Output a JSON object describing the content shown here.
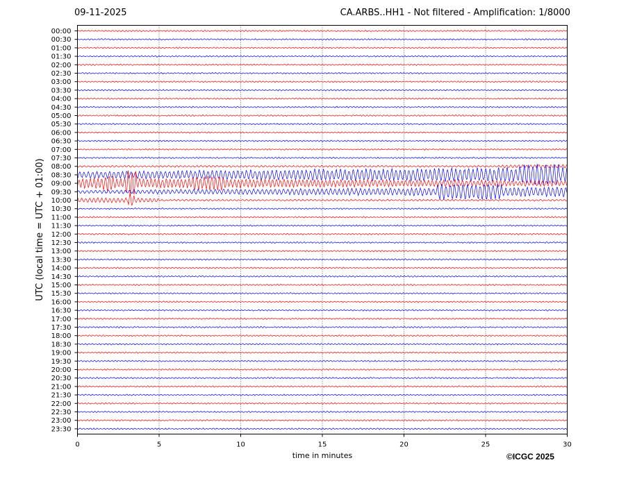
{
  "header": {
    "date": "09-11-2025",
    "title": "CA.ARBS..HH1 - Not filtered - Amplification: 1/8000"
  },
  "footer": {
    "copyright": "©ICGC 2025"
  },
  "chart_data": {
    "type": "line",
    "subtype": "helicorder",
    "xlabel": "time in minutes",
    "ylabel": "UTC (local time = UTC + 01:00)",
    "xlim": [
      0,
      30
    ],
    "xticks": [
      0,
      5,
      10,
      15,
      20,
      25,
      30
    ],
    "x_grid": "dotted vertical lines at each 5 minutes",
    "trace_colors": [
      "#ff0000",
      "#0000ff"
    ],
    "rows": [
      "00:00",
      "00:30",
      "01:00",
      "01:30",
      "02:00",
      "02:30",
      "03:00",
      "03:30",
      "04:00",
      "04:30",
      "05:00",
      "05:30",
      "06:00",
      "06:30",
      "07:00",
      "07:30",
      "08:00",
      "08:30",
      "09:00",
      "09:30",
      "10:00",
      "10:30",
      "11:00",
      "11:30",
      "12:00",
      "12:30",
      "13:00",
      "13:30",
      "14:00",
      "14:30",
      "15:00",
      "15:30",
      "16:00",
      "16:30",
      "17:00",
      "17:30",
      "18:00",
      "18:30",
      "19:00",
      "19:30",
      "20:00",
      "20:30",
      "21:00",
      "21:30",
      "22:00",
      "22:30",
      "23:00",
      "23:30"
    ],
    "events": [
      {
        "row": "08:30",
        "start_min": 0,
        "end_min": 30,
        "note": "large-amplitude oscillations, peaks near 28 min"
      },
      {
        "row": "09:00",
        "start_min": 0,
        "end_min": 30,
        "note": "large-amplitude oscillations, peaks near 3 min"
      },
      {
        "row": "09:30",
        "start_min": 0,
        "end_min": 30,
        "note": "large-amplitude oscillations, peaks near 25 min"
      },
      {
        "row": "10:00",
        "start_min": 0,
        "end_min": 5,
        "note": "spike near 3.3 min"
      }
    ]
  }
}
